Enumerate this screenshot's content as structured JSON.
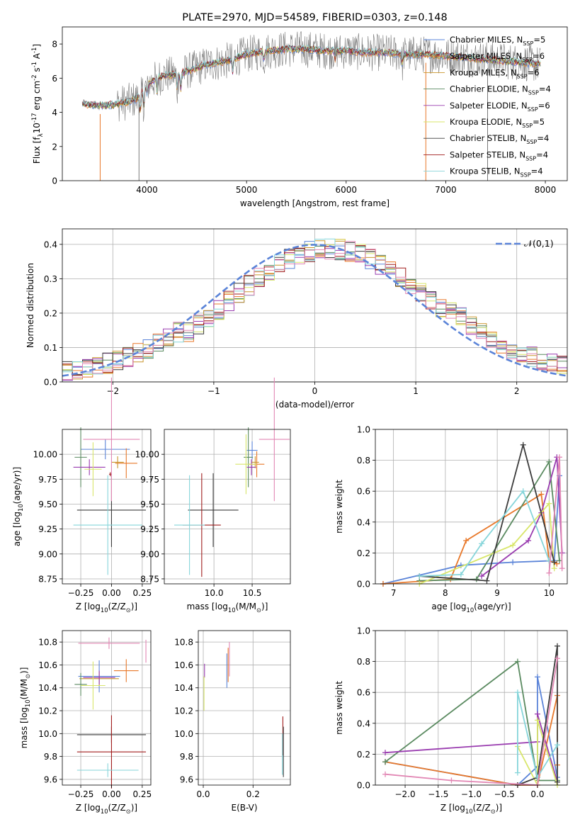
{
  "colors": [
    "#5b84d8",
    "#e8782a",
    "#c9962e",
    "#5a8a60",
    "#9a3db0",
    "#d8e66a",
    "#3c3c3c",
    "#a01c1c",
    "#86d5da",
    "#e287b4",
    "#7a7a7a"
  ],
  "legend": [
    {
      "label": "Chabrier MILES, N$_{SSP}$=5",
      "color": "#5b84d8"
    },
    {
      "label": "Salpeter MILES, N$_{SSP}$=6",
      "color": "#e8782a"
    },
    {
      "label": "Kroupa MILES, N$_{SSP}$=6",
      "color": "#c9962e"
    },
    {
      "label": "Chabrier ELODIE, N$_{SSP}$=4",
      "color": "#5a8a60"
    },
    {
      "label": "Salpeter ELODIE, N$_{SSP}$=6",
      "color": "#9a3db0"
    },
    {
      "label": "Kroupa ELODIE, N$_{SSP}$=5",
      "color": "#d8e66a"
    },
    {
      "label": "Chabrier STELIB, N$_{SSP}$=4",
      "color": "#3c3c3c"
    },
    {
      "label": "Salpeter STELIB, N$_{SSP}$=4",
      "color": "#a01c1c"
    },
    {
      "label": "Kroupa STELIB, N$_{SSP}$=4",
      "color": "#86d5da"
    }
  ],
  "chart_data": [
    {
      "type": "line",
      "title": "PLATE=2970, MJD=54589, FIBERID=0303, z=0.148",
      "xlabel": "wavelength [Angstrom, rest frame]",
      "ylabel": "Flux [f$_\\lambda$10$^{-17}$ erg cm$^{-2}$ s$^{-1}$ A$^{-1}$]",
      "xlim": [
        3150,
        8220
      ],
      "ylim": [
        0,
        9
      ],
      "xticks": [
        4000,
        5000,
        6000,
        7000,
        8000
      ],
      "yticks": [
        0,
        2,
        4,
        6,
        8
      ],
      "continuum_x": [
        3350,
        3500,
        3600,
        3700,
        3800,
        3900,
        4000,
        4100,
        4200,
        4300,
        4400,
        4500,
        4600,
        4700,
        4800,
        4900,
        5000,
        5200,
        5400,
        5600,
        5800,
        6000,
        6200,
        6400,
        6600,
        6800,
        7000,
        7200,
        7400,
        7600,
        7800,
        7950
      ],
      "continuum_y": [
        4.5,
        4.4,
        4.4,
        4.5,
        4.6,
        4.8,
        5.6,
        6.0,
        6.2,
        6.2,
        6.4,
        6.6,
        6.8,
        6.9,
        7.0,
        7.2,
        7.4,
        7.6,
        7.7,
        7.7,
        7.6,
        7.6,
        7.5,
        7.5,
        7.4,
        7.4,
        7.3,
        7.2,
        7.1,
        7.0,
        6.9,
        6.8
      ],
      "dips": [
        [
          3530,
          0.0
        ],
        [
          3920,
          0.0
        ],
        [
          6800,
          0.0
        ],
        [
          7420,
          0.0
        ]
      ],
      "legend_position": "upper right"
    },
    {
      "type": "step",
      "xlabel": "(data-model)/error",
      "ylabel": "Normed distribution",
      "xlim": [
        -2.5,
        2.5
      ],
      "ylim": [
        0,
        0.445
      ],
      "xticks": [
        -2,
        -1,
        0,
        1,
        2
      ],
      "yticks": [
        0.0,
        0.1,
        0.2,
        0.3,
        0.4
      ],
      "legend": "$\\mathcal{N}(0,1)$",
      "legend_position": "upper right",
      "grid": true
    },
    {
      "type": "errorbar",
      "xlabel": "Z [log$_{10}$(Z/Z$_\\odot$)]",
      "ylabel": "age  [log$_{10}$(age/yr)]",
      "xlim": [
        -0.4,
        0.32
      ],
      "ylim": [
        8.7,
        10.25
      ],
      "xticks": [
        "-0.25",
        "0.00",
        "0.25"
      ],
      "xtick_values": [
        -0.25,
        0,
        0.25
      ],
      "yticks": [
        "8.75",
        "9.00",
        "9.25",
        "9.50",
        "9.75",
        "10.00"
      ],
      "ytick_values": [
        8.75,
        9.0,
        9.25,
        9.5,
        9.75,
        10.0
      ],
      "points": [
        {
          "x": -0.05,
          "y": 10.05,
          "xerr": 0.2,
          "yerr": 0.1,
          "c": 0
        },
        {
          "x": 0.12,
          "y": 9.91,
          "xerr": 0.09,
          "yerr": 0.15,
          "c": 1
        },
        {
          "x": 0.05,
          "y": 9.92,
          "xerr": 0.05,
          "yerr": 0.06,
          "c": 2
        },
        {
          "x": -0.25,
          "y": 9.97,
          "xerr": 0.05,
          "yerr": 0.3,
          "c": 3
        },
        {
          "x": -0.18,
          "y": 9.87,
          "xerr": 0.13,
          "yerr": 0.08,
          "c": 4
        },
        {
          "x": -0.15,
          "y": 9.85,
          "xerr": 0.07,
          "yerr": 0.27,
          "c": 5
        },
        {
          "x": 0.0,
          "y": 9.44,
          "xerr": 0.28,
          "yerr": 0.37,
          "c": 6
        },
        {
          "x": -0.01,
          "y": 9.8,
          "xerr": 0.01,
          "yerr": 0.02,
          "c": 7
        },
        {
          "x": -0.03,
          "y": 9.29,
          "xerr": 0.28,
          "yerr": 0.5,
          "c": 8
        },
        {
          "x": 0.0,
          "y": 10.15,
          "xerr": 0.23,
          "yerr": 0.62,
          "c": 9
        }
      ]
    },
    {
      "type": "errorbar",
      "xlabel": "mass [log$_{10}$(M/M$_\\odot$)]",
      "xlim": [
        9.35,
        11.0
      ],
      "ylim": [
        8.7,
        10.25
      ],
      "xticks": [
        "10.0",
        "10.5"
      ],
      "xtick_values": [
        10.0,
        10.5
      ],
      "yticks": [
        "8.75",
        "9.00",
        "9.25",
        "9.50",
        "9.75",
        "10.00"
      ],
      "ytick_values": [
        8.75,
        9.0,
        9.25,
        9.5,
        9.75,
        10.0
      ],
      "points": [
        {
          "x": 10.5,
          "y": 10.04,
          "xerr": 0.07,
          "yerr": 0.09,
          "c": 0
        },
        {
          "x": 10.56,
          "y": 9.9,
          "xerr": 0.1,
          "yerr": 0.13,
          "c": 1
        },
        {
          "x": 10.54,
          "y": 9.92,
          "xerr": 0.05,
          "yerr": 0.06,
          "c": 2
        },
        {
          "x": 10.45,
          "y": 9.97,
          "xerr": 0.06,
          "yerr": 0.3,
          "c": 3
        },
        {
          "x": 10.49,
          "y": 9.87,
          "xerr": 0.06,
          "yerr": 0.08,
          "c": 4
        },
        {
          "x": 10.42,
          "y": 9.9,
          "xerr": 0.14,
          "yerr": 0.3,
          "c": 5
        },
        {
          "x": 9.99,
          "y": 9.44,
          "xerr": 0.33,
          "yerr": 0.37,
          "c": 6
        },
        {
          "x": 9.84,
          "y": 9.29,
          "xerr": 0.25,
          "yerr": 0.52,
          "c": 7
        },
        {
          "x": 9.68,
          "y": 9.29,
          "xerr": 0.2,
          "yerr": 0.5,
          "c": 8
        },
        {
          "x": 10.79,
          "y": 10.15,
          "xerr": 0.2,
          "yerr": 0.62,
          "c": 9
        }
      ]
    },
    {
      "type": "line",
      "xlabel": "age  [log$_{10}$(age/yr)]",
      "ylabel": "mass weight",
      "xlim": [
        6.65,
        10.35
      ],
      "ylim": [
        0,
        1
      ],
      "xticks": [
        "7",
        "8",
        "9",
        "10"
      ],
      "xtick_values": [
        7,
        8,
        9,
        10
      ],
      "yticks": [
        "0.0",
        "0.2",
        "0.4",
        "0.6",
        "0.8",
        "1.0"
      ],
      "ytick_values": [
        0,
        0.2,
        0.4,
        0.6,
        0.8,
        1.0
      ],
      "grid": true,
      "series": [
        {
          "c": 0,
          "x": [
            6.8,
            8.3,
            9.3,
            10.1,
            10.2
          ],
          "y": [
            0.0,
            0.12,
            0.14,
            0.15,
            0.7
          ]
        },
        {
          "c": 1,
          "x": [
            6.8,
            8.1,
            8.4,
            9.85,
            10.0,
            10.15
          ],
          "y": [
            0.0,
            0.03,
            0.28,
            0.58,
            0.15,
            0.13
          ]
        },
        {
          "c": 3,
          "x": [
            7.5,
            8.6,
            10.0,
            10.2
          ],
          "y": [
            0.02,
            0.03,
            0.79,
            0.15
          ]
        },
        {
          "c": 4,
          "x": [
            8.7,
            9.6,
            9.85,
            10.15,
            10.25
          ],
          "y": [
            0.05,
            0.28,
            0.46,
            0.82,
            0.2
          ]
        },
        {
          "c": 5,
          "x": [
            7.5,
            9.3,
            10.0,
            10.1
          ],
          "y": [
            0.0,
            0.25,
            0.52,
            0.1
          ]
        },
        {
          "c": 6,
          "x": [
            7.5,
            8.8,
            9.5,
            10.1
          ],
          "y": [
            0.05,
            0.02,
            0.9,
            0.14
          ]
        },
        {
          "c": 8,
          "x": [
            7.5,
            8.3,
            8.7,
            9.5,
            10.0
          ],
          "y": [
            0.05,
            0.06,
            0.26,
            0.6,
            0.15
          ]
        },
        {
          "c": 9,
          "x": [
            10.0,
            10.2,
            10.25
          ],
          "y": [
            0.07,
            0.82,
            0.1
          ]
        }
      ]
    },
    {
      "type": "errorbar",
      "xlabel": "Z [log$_{10}$(Z/Z$_\\odot$)]",
      "ylabel": "mass [log$_{10}$(M/M$_\\odot$)]",
      "xlim": [
        -0.4,
        0.32
      ],
      "ylim": [
        9.55,
        10.9
      ],
      "xticks": [
        "-0.25",
        "0.00",
        "0.25"
      ],
      "xtick_values": [
        -0.25,
        0,
        0.25
      ],
      "yticks": [
        "9.6",
        "9.8",
        "10.0",
        "10.2",
        "10.4",
        "10.6",
        "10.8"
      ],
      "ytick_values": [
        9.6,
        9.8,
        10.0,
        10.2,
        10.4,
        10.6,
        10.8
      ],
      "points": [
        {
          "x": -0.1,
          "y": 10.5,
          "xerr": 0.17,
          "yerr": 0.14,
          "c": 0
        },
        {
          "x": 0.12,
          "y": 10.55,
          "xerr": 0.1,
          "yerr": 0.1,
          "c": 1
        },
        {
          "x": -0.1,
          "y": 10.48,
          "xerr": 0.16,
          "yerr": 0.06,
          "c": 2
        },
        {
          "x": -0.25,
          "y": 10.43,
          "xerr": 0.05,
          "yerr": 0.1,
          "c": 3
        },
        {
          "x": -0.1,
          "y": 10.49,
          "xerr": 0.13,
          "yerr": 0.06,
          "c": 4
        },
        {
          "x": -0.15,
          "y": 10.42,
          "xerr": 0.1,
          "yerr": 0.21,
          "c": 5
        },
        {
          "x": 0.0,
          "y": 9.99,
          "xerr": 0.28,
          "yerr": 0.07,
          "c": 6
        },
        {
          "x": 0.0,
          "y": 9.84,
          "xerr": 0.28,
          "yerr": 0.32,
          "c": 7
        },
        {
          "x": -0.03,
          "y": 9.68,
          "xerr": 0.25,
          "yerr": 0.06,
          "c": 8
        },
        {
          "x": -0.02,
          "y": 10.79,
          "xerr": 0.25,
          "yerr": 0.05,
          "c": 9
        },
        {
          "x": 0.28,
          "y": 10.72,
          "xerr": 0.0,
          "yerr": 0.1,
          "c": 9
        }
      ]
    },
    {
      "type": "errorbar",
      "xlabel": "E(B-V)",
      "xlim": [
        -0.02,
        0.35
      ],
      "ylim": [
        9.55,
        10.9
      ],
      "xticks": [
        "0.0",
        "0.2"
      ],
      "xtick_values": [
        0.0,
        0.2
      ],
      "yticks": [
        "9.6",
        "9.8",
        "10.0",
        "10.2",
        "10.4",
        "10.6",
        "10.8"
      ],
      "ytick_values": [
        9.6,
        9.8,
        10.0,
        10.2,
        10.4,
        10.6,
        10.8
      ],
      "points": [
        {
          "x": 0.005,
          "y": 10.55,
          "xerr": 0,
          "yerr": 0.06,
          "c": 4
        },
        {
          "x": 0.003,
          "y": 10.35,
          "xerr": 0,
          "yerr": 0.15,
          "c": 5
        },
        {
          "x": 0.095,
          "y": 10.55,
          "xerr": 0,
          "yerr": 0.15,
          "c": 0
        },
        {
          "x": 0.1,
          "y": 10.6,
          "xerr": 0,
          "yerr": 0.15,
          "c": 1
        },
        {
          "x": 0.105,
          "y": 10.65,
          "xerr": 0,
          "yerr": 0.15,
          "c": 9
        },
        {
          "x": 0.32,
          "y": 9.98,
          "xerr": 0,
          "yerr": 0.17,
          "c": 7
        },
        {
          "x": 0.322,
          "y": 9.84,
          "xerr": 0,
          "yerr": 0.22,
          "c": 6
        },
        {
          "x": 0.318,
          "y": 9.82,
          "xerr": 0,
          "yerr": 0.18,
          "c": 8
        }
      ]
    },
    {
      "type": "line",
      "xlabel": "Z [log$_{10}$(Z/Z$_\\odot$)]",
      "ylabel": "mass weight",
      "xlim": [
        -2.45,
        0.45
      ],
      "ylim": [
        0,
        1
      ],
      "xticks": [
        "-2.0",
        "-1.5",
        "-1.0",
        "-0.5",
        "0.0"
      ],
      "xtick_values": [
        -2.0,
        -1.5,
        -1.0,
        -0.5,
        0.0
      ],
      "yticks": [
        "0.0",
        "0.2",
        "0.4",
        "0.6",
        "0.8",
        "1.0"
      ],
      "ytick_values": [
        0,
        0.2,
        0.4,
        0.6,
        0.8,
        1.0
      ],
      "grid": true,
      "series": [
        {
          "c": 0,
          "x": [
            -2.3,
            -0.3,
            0.0,
            0.0,
            0.3
          ],
          "y": [
            0.15,
            0.0,
            0.12,
            0.7,
            0.05
          ]
        },
        {
          "c": 1,
          "x": [
            -2.3,
            -0.3,
            0.0,
            0.3,
            0.3
          ],
          "y": [
            0.15,
            0.0,
            0.0,
            0.58,
            0.13
          ]
        },
        {
          "c": 3,
          "x": [
            -2.3,
            -0.3,
            0.0,
            0.3
          ],
          "y": [
            0.15,
            0.8,
            0.03,
            0.03
          ]
        },
        {
          "c": 4,
          "x": [
            -2.3,
            0.0,
            0.0,
            0.3
          ],
          "y": [
            0.21,
            0.28,
            0.46,
            0.02
          ]
        },
        {
          "c": 5,
          "x": [
            -0.3,
            0.0,
            0.0,
            0.3
          ],
          "y": [
            0.25,
            0.0,
            0.42,
            0.0
          ]
        },
        {
          "c": 6,
          "x": [
            -0.3,
            0.0,
            0.3,
            0.3
          ],
          "y": [
            0.0,
            0.05,
            0.9,
            0.02
          ]
        },
        {
          "c": 8,
          "x": [
            -0.3,
            -0.3,
            0.0,
            0.3
          ],
          "y": [
            0.08,
            0.6,
            0.05,
            0.26
          ]
        },
        {
          "c": 9,
          "x": [
            -2.3,
            -1.3,
            0.0,
            0.3
          ],
          "y": [
            0.07,
            0.03,
            0.0,
            0.82
          ]
        }
      ]
    }
  ]
}
